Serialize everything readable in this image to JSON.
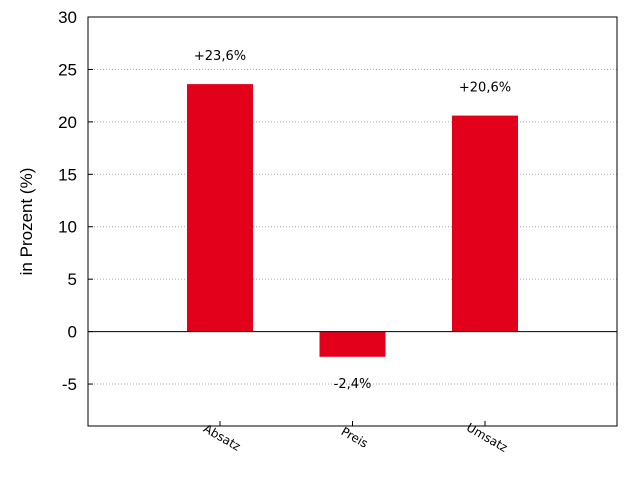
{
  "chart_data": {
    "type": "bar",
    "title": "",
    "xlabel": "",
    "ylabel": "in Prozent (%)",
    "categories": [
      "Absatz",
      "Preis",
      "Umsatz"
    ],
    "values": [
      23.6,
      -2.4,
      20.6
    ],
    "data_labels": [
      "+23,6%",
      "-2,4%",
      "+20,6%"
    ],
    "ylim": [
      -9,
      30
    ],
    "yticks": [
      -5,
      0,
      5,
      10,
      15,
      20,
      25,
      30
    ],
    "ytick_labels": [
      "-5",
      "0",
      "5",
      "10",
      "15",
      "20",
      "25",
      "30"
    ],
    "grid": "horizontal dotted",
    "bar_color": "#e2001a",
    "legend": "none"
  }
}
